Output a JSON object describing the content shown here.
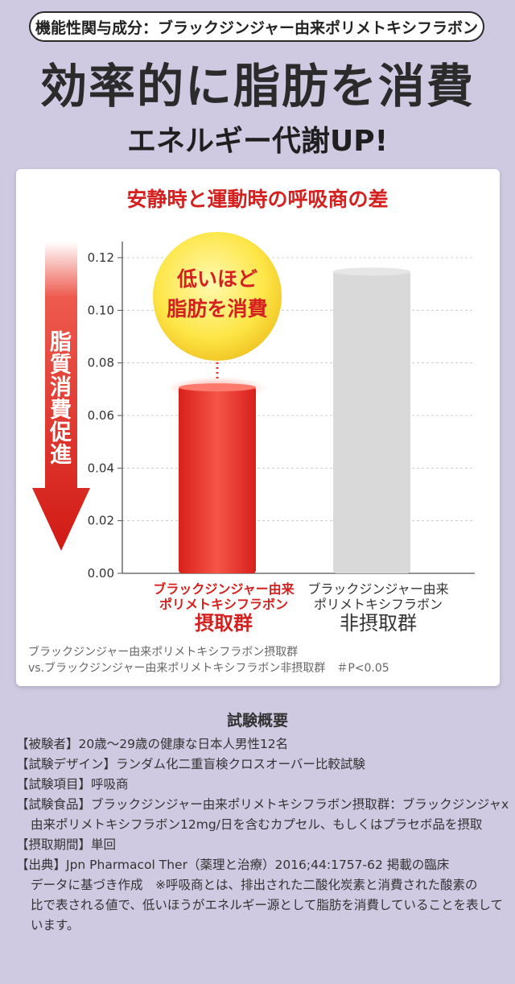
{
  "header": {
    "badge": "機能性関与成分：ブラックジンジャー由来ポリメトキシフラボン",
    "headline": "効率的に脂肪を消費",
    "subheadline": "エネルギー代謝UP!"
  },
  "chart_data": {
    "type": "bar",
    "title": "安静時と運動時の呼吸商の差",
    "categories": [
      "ブラックジンジャー由来ポリメトキシフラボン摂取群",
      "ブラックジンジャー由来ポリメトキシフラボン非摂取群"
    ],
    "values": [
      0.071,
      0.115
    ],
    "ylim": [
      0,
      0.12
    ],
    "yticks": [
      "0.00",
      "0.02",
      "0.04",
      "0.06",
      "0.08",
      "0.10",
      "0.12"
    ],
    "grid": true,
    "colors": {
      "intake": "#e8302a",
      "non_intake": "#d9d9d9"
    },
    "callout": [
      "低いほど",
      "脂肪を消費"
    ],
    "arrow_label": "脂質消費促進",
    "x_labels": [
      {
        "line1": "ブラックジンジャー由来",
        "line2": "ポリメトキシフラボン",
        "line3": "摂取群"
      },
      {
        "line1": "ブラックジンジャー由来",
        "line2": "ポリメトキシフラボン",
        "line3": "非摂取群"
      }
    ],
    "note_line1": "ブラックジンジャー由来ポリメトキシフラボン摂取群",
    "note_line2": "vs.ブラックジンジャー由来ポリメトキシフラボン非摂取群　＃P<0.05"
  },
  "summary": {
    "title": "試験概要",
    "lines": [
      "【被験者】20歳〜29歳の健康な日本人男性12名",
      "【試験デザイン】ランダム化二重盲検クロスオーバー比較試験",
      "【試験項目】呼吸商",
      "【試験食品】ブラックジンジャー由来ポリメトキシフラボン摂取群：ブラックジンジャx",
      "由来ポリメトキシフラボン12mg/日を含むカプセル、もしくはプラセボ品を摂取",
      "【摂取期間】単回",
      "【出典】Jpn Pharmacol Ther（薬理と治療）2016;44:1757-62 掲載の臨床",
      "データに基づき作成　※呼吸商とは、排出された二酸化炭素と消費された酸素の",
      "比で表される値で、低いほうがエネルギー源として脂肪を消費していることを表して",
      "います。"
    ]
  }
}
